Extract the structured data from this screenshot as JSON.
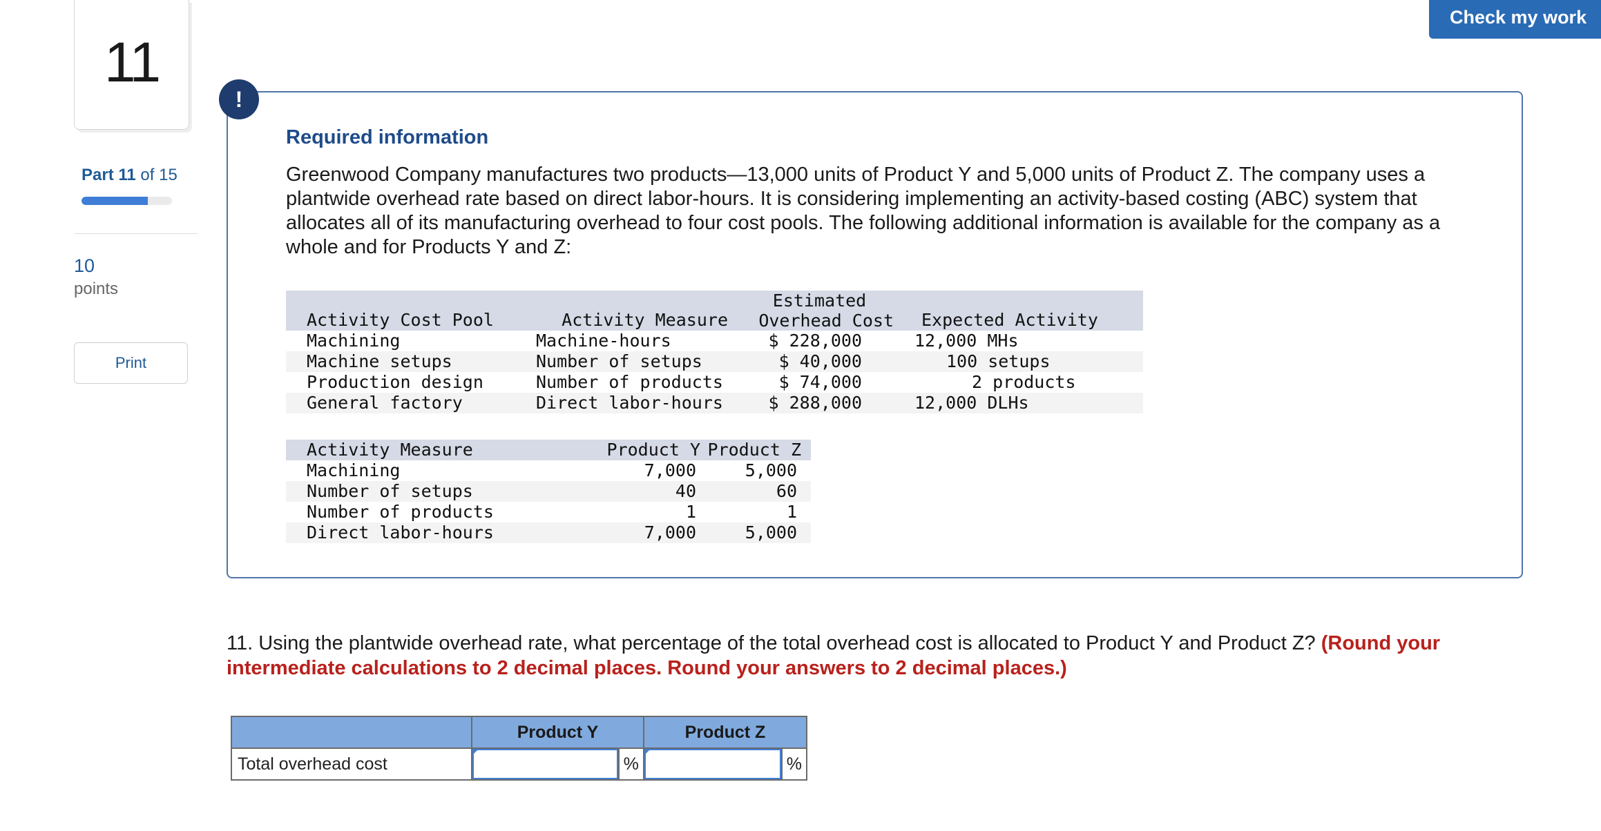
{
  "sidebar": {
    "question_number": "11",
    "part_label": "Part",
    "part_current": "11",
    "part_of": "of 15",
    "progress_fraction": 0.733,
    "points_value": "10",
    "points_label": "points",
    "print_label": "Print"
  },
  "header": {
    "check_my_work": "Check my work"
  },
  "info": {
    "alert_glyph": "!",
    "title": "Required information",
    "intro": "Greenwood Company manufactures two products—13,000 units of Product Y and 5,000 units of Product Z. The company uses a plantwide overhead rate based on direct labor-hours. It is considering implementing an activity-based costing (ABC) system that allocates all of its manufacturing overhead to four cost pools. The following additional information is available for the company as a whole and for Products Y and Z:",
    "table1": {
      "headers": [
        "Activity Cost Pool",
        "Activity Measure",
        "Estimated",
        "Overhead Cost",
        "Expected Activity"
      ],
      "rows": [
        [
          "Machining",
          "Machine-hours",
          "$ 228,000",
          "12,000 MHs"
        ],
        [
          "Machine setups",
          "Number of setups",
          "$ 40,000",
          "100 setups"
        ],
        [
          "Production design",
          "Number of products",
          "$ 74,000",
          "2 products"
        ],
        [
          "General factory",
          "Direct labor-hours",
          "$ 288,000",
          "12,000 DLHs"
        ]
      ]
    },
    "table2": {
      "headers": [
        "Activity Measure",
        "Product Y",
        "Product Z"
      ],
      "rows": [
        [
          "Machining",
          "7,000",
          "5,000"
        ],
        [
          "Number of setups",
          "40",
          "60"
        ],
        [
          "Number of products",
          "1",
          "1"
        ],
        [
          "Direct labor-hours",
          "7,000",
          "5,000"
        ]
      ]
    }
  },
  "question": {
    "text": "11. Using the plantwide overhead rate, what percentage of the total overhead cost is allocated to Product Y and Product Z? ",
    "instruction": "(Round your intermediate calculations to 2 decimal places. Round your answers to 2 decimal places.)"
  },
  "answer_table": {
    "col_y": "Product Y",
    "col_z": "Product Z",
    "row_label": "Total overhead cost",
    "value_y": "",
    "value_z": "",
    "unit": "%"
  },
  "colors": {
    "accent": "#2a6bb5",
    "title": "#1e4b8a",
    "red": "#b8211c",
    "table_header": "#80aade"
  }
}
